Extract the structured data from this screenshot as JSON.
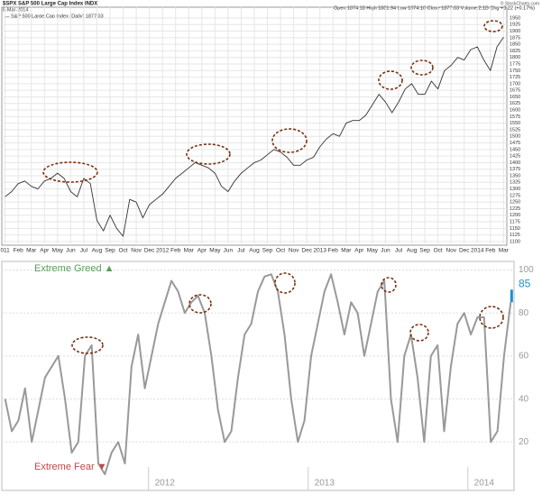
{
  "header": {
    "symbol": "$SPX S&P 500 Large Cap Index INDX",
    "date": "8-Mar-2014",
    "quote": "Open 1874.18 High 1881.94 Low 1874.18 Close 1877.03 Volume 2.1B Chg +3.22 (+0.17%)",
    "credit": "© StockCharts.com",
    "legend": "— S&P 500 Large Cap Index (Daily) 1877.03"
  },
  "chart_data": [
    {
      "type": "line",
      "color": "#333333",
      "grid": true,
      "categories": [
        "011",
        null,
        "Feb",
        null,
        "Mar",
        null,
        "Apr",
        null,
        "May",
        null,
        "Jun",
        null,
        "Jul",
        null,
        "Aug",
        null,
        "Sep",
        null,
        "Oct",
        null,
        "Nov",
        null,
        "Dec",
        null,
        "2012",
        null,
        "Feb",
        null,
        "Mar",
        null,
        "Apr",
        null,
        "May",
        null,
        "Jun",
        null,
        "Jul",
        null,
        "Aug",
        null,
        "Sep",
        null,
        "Oct",
        null,
        "Nov",
        null,
        "Dec",
        null,
        "2013",
        null,
        "Feb",
        null,
        "Mar",
        null,
        "Apr",
        null,
        "May",
        null,
        "Jun",
        null,
        "Jul",
        null,
        "Aug",
        null,
        "Sep",
        null,
        "Oct",
        null,
        "Nov",
        null,
        "Dec",
        null,
        "2014",
        null,
        "Feb",
        null,
        "Mar"
      ],
      "values": [
        1270,
        1290,
        1320,
        1330,
        1310,
        1300,
        1330,
        1340,
        1360,
        1340,
        1290,
        1270,
        1340,
        1320,
        1180,
        1140,
        1200,
        1150,
        1120,
        1260,
        1250,
        1190,
        1240,
        1260,
        1280,
        1310,
        1340,
        1360,
        1380,
        1400,
        1390,
        1380,
        1360,
        1310,
        1290,
        1330,
        1360,
        1380,
        1400,
        1410,
        1430,
        1450,
        1440,
        1420,
        1390,
        1390,
        1410,
        1420,
        1460,
        1490,
        1510,
        1500,
        1550,
        1560,
        1560,
        1580,
        1620,
        1660,
        1630,
        1590,
        1630,
        1680,
        1700,
        1660,
        1660,
        1710,
        1680,
        1750,
        1770,
        1800,
        1790,
        1830,
        1840,
        1790,
        1750,
        1840,
        1877
      ],
      "ylim": [
        1086,
        1991
      ],
      "yticks": [
        1100,
        1125,
        1150,
        1175,
        1200,
        1225,
        1250,
        1275,
        1300,
        1325,
        1350,
        1375,
        1400,
        1425,
        1450,
        1475,
        1500,
        1525,
        1550,
        1575,
        1600,
        1625,
        1650,
        1675,
        1700,
        1725,
        1750,
        1775,
        1800,
        1825,
        1850,
        1875,
        1900,
        1925,
        1950
      ]
    },
    {
      "type": "line",
      "color": "#999999",
      "grid": true,
      "annotations": [
        "Extreme Greed ▲",
        "Extreme Fear ▼"
      ],
      "categories": [
        null,
        null,
        null,
        null,
        null,
        null,
        null,
        null,
        null,
        null,
        null,
        null,
        null,
        null,
        null,
        null,
        null,
        null,
        null,
        null,
        null,
        null,
        null,
        null,
        "2012",
        null,
        null,
        null,
        null,
        null,
        null,
        null,
        null,
        null,
        null,
        null,
        null,
        null,
        null,
        null,
        null,
        null,
        null,
        null,
        null,
        null,
        null,
        null,
        "2013",
        null,
        null,
        null,
        null,
        null,
        null,
        null,
        null,
        null,
        null,
        null,
        null,
        null,
        null,
        null,
        null,
        null,
        null,
        null,
        null,
        null,
        null,
        null,
        "2014",
        null,
        null,
        null,
        null
      ],
      "values": [
        40,
        25,
        30,
        45,
        20,
        35,
        50,
        55,
        60,
        40,
        15,
        20,
        60,
        65,
        10,
        5,
        15,
        20,
        10,
        55,
        70,
        45,
        60,
        75,
        85,
        95,
        90,
        80,
        85,
        88,
        80,
        60,
        35,
        20,
        25,
        50,
        70,
        75,
        90,
        97,
        98,
        90,
        70,
        40,
        20,
        30,
        60,
        75,
        90,
        98,
        85,
        70,
        85,
        80,
        60,
        75,
        90,
        95,
        40,
        20,
        60,
        70,
        50,
        20,
        60,
        65,
        25,
        55,
        75,
        80,
        70,
        78,
        78,
        20,
        25,
        60,
        85
      ],
      "ylim": [
        0,
        104
      ],
      "yticks": [
        20,
        40,
        60,
        80,
        100
      ]
    }
  ]
}
